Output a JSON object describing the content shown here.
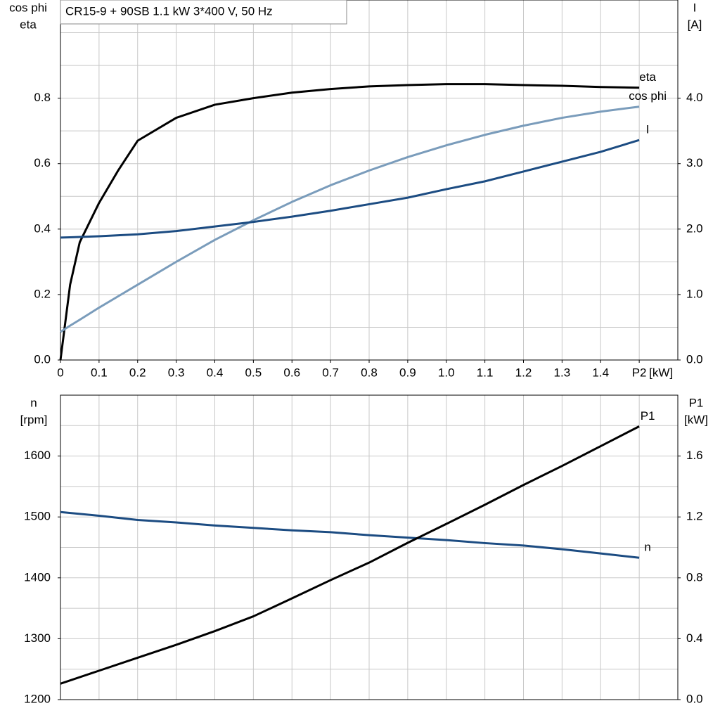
{
  "chart_data": [
    {
      "type": "line",
      "title": "CR15-9 + 90SB   1.1 kW   3*400 V, 50 Hz",
      "ylabel": [
        "cos phi",
        "eta"
      ],
      "y2label": [
        "I",
        "[A]"
      ],
      "xlabel": "[kW]",
      "x": [
        0,
        0.025,
        0.05,
        0.1,
        0.15,
        0.2,
        0.3,
        0.4,
        0.5,
        0.6,
        0.7,
        0.8,
        0.9,
        1.0,
        1.1,
        1.2,
        1.3,
        1.4,
        1.5
      ],
      "series": [
        {
          "name": "eta",
          "color": "#000000",
          "axis": "y",
          "values": [
            0,
            0.23,
            0.36,
            0.48,
            0.58,
            0.67,
            0.74,
            0.78,
            0.8,
            0.817,
            0.828,
            0.836,
            0.84,
            0.843,
            0.843,
            0.84,
            0.838,
            0.834,
            0.832
          ]
        },
        {
          "name": "cos phi",
          "color": "#7a9cbb",
          "axis": "y",
          "values": [
            0.086,
            0.105,
            0.123,
            0.16,
            0.195,
            0.23,
            0.3,
            0.367,
            0.427,
            0.483,
            0.534,
            0.579,
            0.62,
            0.656,
            0.688,
            0.716,
            0.74,
            0.759,
            0.774
          ]
        },
        {
          "name": "I",
          "color": "#1c4c82",
          "axis": "y2",
          "values": [
            1.87,
            1.875,
            1.88,
            1.89,
            1.905,
            1.92,
            1.97,
            2.04,
            2.11,
            2.19,
            2.28,
            2.38,
            2.48,
            2.61,
            2.73,
            2.88,
            3.03,
            3.18,
            3.36
          ]
        }
      ],
      "xlim": [
        0,
        1.6
      ],
      "xticks": [
        0,
        0.1,
        0.2,
        0.3,
        0.4,
        0.5,
        0.6,
        0.7,
        0.8,
        0.9,
        {
          "value": 1,
          "label": "1.0"
        },
        1.1,
        1.2,
        1.3,
        1.4,
        {
          "value": 1.5,
          "label": "P2"
        }
      ],
      "show_xtick_labels": true,
      "ylim": [
        0,
        1.1
      ],
      "yticks": [
        {
          "value": 0,
          "label": "0.0"
        },
        0.2,
        0.4,
        0.6,
        0.8
      ],
      "ygrid": [
        0.1,
        0.2,
        0.3,
        0.4,
        0.5,
        0.6,
        0.7,
        0.8,
        0.9,
        1.0
      ],
      "y2lim": [
        0,
        5.5
      ],
      "y2ticks": [
        {
          "value": 0,
          "label": "0.0"
        },
        {
          "value": 1,
          "label": "1.0"
        },
        {
          "value": 2,
          "label": "2.0"
        },
        {
          "value": 3,
          "label": "3.0"
        },
        {
          "value": 4,
          "label": "4.0"
        }
      ],
      "grid": true
    },
    {
      "type": "line",
      "ylabel": [
        "n",
        "[rpm]"
      ],
      "y2label": [
        "P1",
        "[kW]"
      ],
      "x": [
        0,
        0.1,
        0.2,
        0.3,
        0.4,
        0.5,
        0.6,
        0.7,
        0.8,
        0.9,
        1.0,
        1.1,
        1.2,
        1.3,
        1.4,
        1.5
      ],
      "series": [
        {
          "name": "n",
          "color": "#1c4c82",
          "axis": "y",
          "values": [
            1508,
            1502,
            1495,
            1491,
            1486,
            1482,
            1478,
            1475,
            1470,
            1466,
            1462,
            1457,
            1453,
            1447,
            1440,
            1433
          ]
        },
        {
          "name": "P1",
          "color": "#000000",
          "axis": "y2",
          "values": [
            0.105,
            0.19,
            0.275,
            0.36,
            0.45,
            0.547,
            0.665,
            0.785,
            0.9,
            1.03,
            1.154,
            1.28,
            1.41,
            1.535,
            1.665,
            1.795
          ]
        }
      ],
      "xlim": [
        0,
        1.6
      ],
      "xticks": [
        0.1,
        0.2,
        0.3,
        0.4,
        0.5,
        0.6,
        0.7,
        0.8,
        0.9,
        1.0,
        1.1,
        1.2,
        1.3,
        1.4,
        1.5
      ],
      "show_xtick_labels": false,
      "ylim": [
        1200,
        1700
      ],
      "yticks": [
        1200,
        1300,
        1400,
        1500,
        1600
      ],
      "ygrid": [
        1250,
        1300,
        1350,
        1400,
        1450,
        1500,
        1550,
        1600,
        1650
      ],
      "y2lim": [
        0,
        2.0
      ],
      "y2ticks": [
        {
          "value": 0,
          "label": "0.0"
        },
        0.4,
        0.8,
        1.2,
        1.6
      ],
      "grid": true
    }
  ]
}
